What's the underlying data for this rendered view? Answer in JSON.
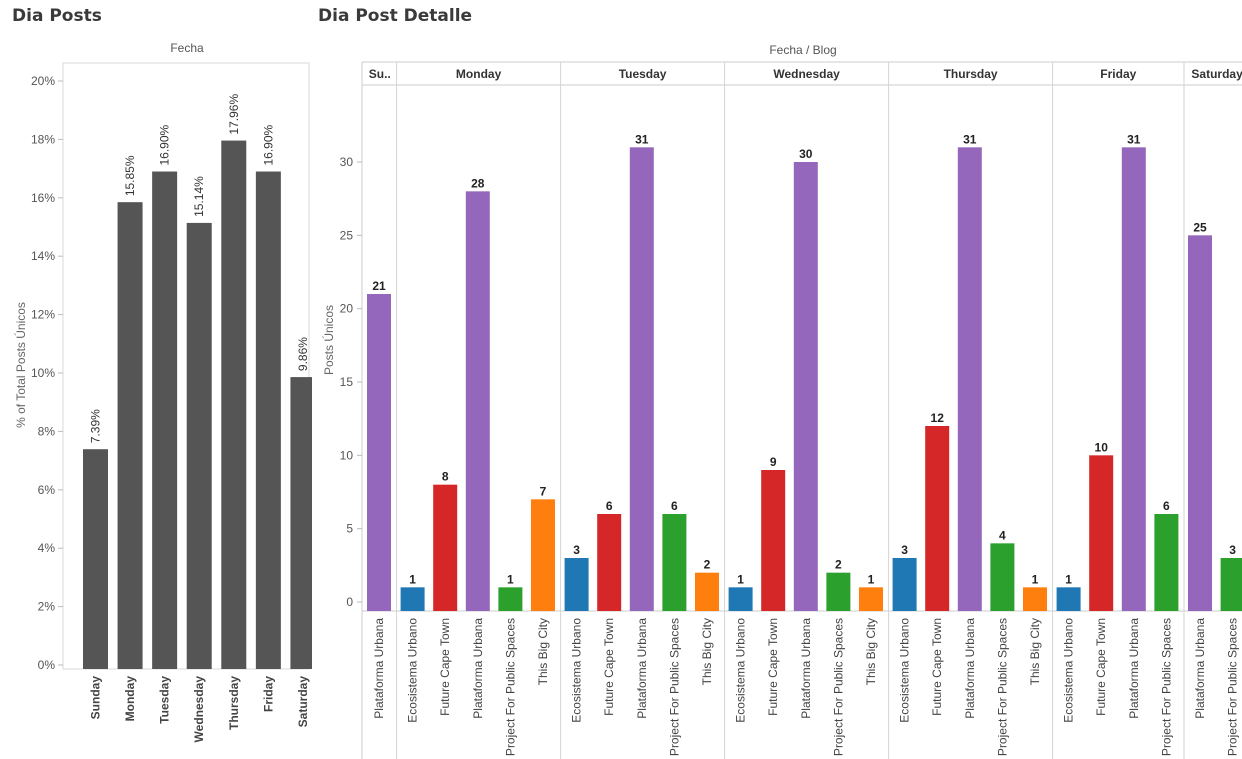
{
  "dashboard": {
    "left_title": "Dia Posts",
    "right_title": "Dia Post Detalle"
  },
  "chart_data": [
    {
      "type": "bar",
      "title": "Dia Posts",
      "column_header": "Fecha",
      "ylabel": "% of Total Posts Únicos",
      "ylim": [
        0,
        20
      ],
      "yticks": [
        0,
        2,
        4,
        6,
        8,
        10,
        12,
        14,
        16,
        18,
        20
      ],
      "tick_suffix": "%",
      "categories": [
        "Sunday",
        "Monday",
        "Tuesday",
        "Wednesday",
        "Thursday",
        "Friday",
        "Saturday"
      ],
      "values": [
        7.39,
        15.85,
        16.9,
        15.14,
        17.96,
        16.9,
        9.86
      ],
      "data_labels": [
        "7.39%",
        "15.85%",
        "16.90%",
        "15.14%",
        "17.96%",
        "16.90%",
        "9.86%"
      ],
      "bar_color": "#555555"
    },
    {
      "type": "bar",
      "title": "Dia Post Detalle",
      "column_header": "Fecha  /  Blog",
      "ylabel": "Posts Únicos",
      "ylim": [
        0,
        33
      ],
      "yticks": [
        0,
        5,
        10,
        15,
        20,
        25,
        30
      ],
      "blog_colors": {
        "Ecosistema Urbano": "#1f77b4",
        "Future Cape Town": "#d62728",
        "Plataforma Urbana": "#9467bd",
        "Project For Public Spaces": "#2ca02c",
        "This Big City": "#ff7f0e"
      },
      "groups": [
        {
          "day": "Su..",
          "bars": [
            {
              "blog": "Plataforma Urbana",
              "value": 21
            }
          ]
        },
        {
          "day": "Monday",
          "bars": [
            {
              "blog": "Ecosistema Urbano",
              "value": 1
            },
            {
              "blog": "Future Cape Town",
              "value": 8
            },
            {
              "blog": "Plataforma Urbana",
              "value": 28
            },
            {
              "blog": "Project For Public Spaces",
              "value": 1
            },
            {
              "blog": "This Big City",
              "value": 7
            }
          ]
        },
        {
          "day": "Tuesday",
          "bars": [
            {
              "blog": "Ecosistema Urbano",
              "value": 3
            },
            {
              "blog": "Future Cape Town",
              "value": 6
            },
            {
              "blog": "Plataforma Urbana",
              "value": 31
            },
            {
              "blog": "Project For Public Spaces",
              "value": 6
            },
            {
              "blog": "This Big City",
              "value": 2
            }
          ]
        },
        {
          "day": "Wednesday",
          "bars": [
            {
              "blog": "Ecosistema Urbano",
              "value": 1
            },
            {
              "blog": "Future Cape Town",
              "value": 9
            },
            {
              "blog": "Plataforma Urbana",
              "value": 30
            },
            {
              "blog": "Project For Public Spaces",
              "value": 2
            },
            {
              "blog": "This Big City",
              "value": 1
            }
          ]
        },
        {
          "day": "Thursday",
          "bars": [
            {
              "blog": "Ecosistema Urbano",
              "value": 3
            },
            {
              "blog": "Future Cape Town",
              "value": 12
            },
            {
              "blog": "Plataforma Urbana",
              "value": 31
            },
            {
              "blog": "Project For Public Spaces",
              "value": 4
            },
            {
              "blog": "This Big City",
              "value": 1
            }
          ]
        },
        {
          "day": "Friday",
          "bars": [
            {
              "blog": "Ecosistema Urbano",
              "value": 1
            },
            {
              "blog": "Future Cape Town",
              "value": 10
            },
            {
              "blog": "Plataforma Urbana",
              "value": 31
            },
            {
              "blog": "Project For Public Spaces",
              "value": 6
            }
          ]
        },
        {
          "day": "Saturday",
          "bars": [
            {
              "blog": "Plataforma Urbana",
              "value": 25
            },
            {
              "blog": "Project For Public Spaces",
              "value": 3
            }
          ]
        }
      ]
    }
  ]
}
